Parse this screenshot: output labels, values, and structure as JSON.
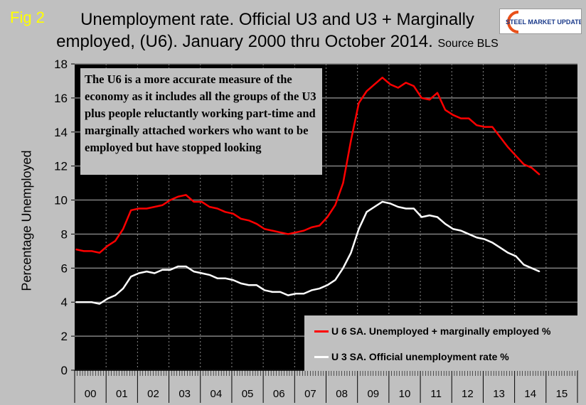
{
  "header": {
    "fig_label": "Fig 2",
    "title": "Unemployment rate. Official U3 and U3 + Marginally employed, (U6). January 2000 thru October 2014.",
    "source": "Source BLS",
    "logo_text": "STEEL MARKET UPDATE"
  },
  "colors": {
    "background": "#c0c0c0",
    "plot_bg": "#000000",
    "u6": "#ff0000",
    "u3": "#ffffff",
    "fig_label": "#ffff00"
  },
  "annotation": "The U6 is a more accurate measure of the economy as it includes all the groups of the U3 plus people reluctantly working part-time and marginally attached workers who want to be employed but have stopped looking",
  "chart_data": {
    "type": "line",
    "title": "Unemployment rate. Official U3 and U3 + Marginally employed, (U6). January 2000 thru October 2014.",
    "xlabel": "",
    "ylabel": "Percentage Unemployed",
    "ylim": [
      0,
      18
    ],
    "yticks": [
      0,
      2,
      4,
      6,
      8,
      10,
      12,
      14,
      16,
      18
    ],
    "xticklabels": [
      "00",
      "01",
      "02",
      "03",
      "04",
      "05",
      "06",
      "07",
      "08",
      "09",
      "10",
      "11",
      "12",
      "13",
      "14",
      "15"
    ],
    "grid": "on",
    "legend_position": "bottom-right",
    "x": [
      "2000-01",
      "2000-04",
      "2000-07",
      "2000-10",
      "2001-01",
      "2001-04",
      "2001-07",
      "2001-10",
      "2002-01",
      "2002-04",
      "2002-07",
      "2002-10",
      "2003-01",
      "2003-04",
      "2003-07",
      "2003-10",
      "2004-01",
      "2004-04",
      "2004-07",
      "2004-10",
      "2005-01",
      "2005-04",
      "2005-07",
      "2005-10",
      "2006-01",
      "2006-04",
      "2006-07",
      "2006-10",
      "2007-01",
      "2007-04",
      "2007-07",
      "2007-10",
      "2008-01",
      "2008-04",
      "2008-07",
      "2008-10",
      "2009-01",
      "2009-04",
      "2009-07",
      "2009-10",
      "2010-01",
      "2010-04",
      "2010-07",
      "2010-10",
      "2011-01",
      "2011-04",
      "2011-07",
      "2011-10",
      "2012-01",
      "2012-04",
      "2012-07",
      "2012-10",
      "2013-01",
      "2013-04",
      "2013-07",
      "2013-10",
      "2014-01",
      "2014-04",
      "2014-07",
      "2014-10"
    ],
    "series": [
      {
        "name": "U 6 SA. Unemployed + marginally employed %",
        "color": "#ff0000",
        "values": [
          7.1,
          7.0,
          7.0,
          6.9,
          7.3,
          7.6,
          8.3,
          9.4,
          9.5,
          9.5,
          9.6,
          9.7,
          10.0,
          10.2,
          10.3,
          9.9,
          9.9,
          9.6,
          9.5,
          9.3,
          9.2,
          8.9,
          8.8,
          8.6,
          8.3,
          8.2,
          8.1,
          8.0,
          8.1,
          8.2,
          8.4,
          8.5,
          9.0,
          9.7,
          11.0,
          13.5,
          15.7,
          16.4,
          16.8,
          17.2,
          16.8,
          16.6,
          16.9,
          16.7,
          16.0,
          15.9,
          16.3,
          15.3,
          15.0,
          14.8,
          14.8,
          14.4,
          14.3,
          14.3,
          13.7,
          13.1,
          12.6,
          12.1,
          11.9,
          11.5
        ]
      },
      {
        "name": "U 3 SA. Official unemployment rate %",
        "color": "#ffffff",
        "values": [
          4.0,
          4.0,
          4.0,
          3.9,
          4.2,
          4.4,
          4.8,
          5.5,
          5.7,
          5.8,
          5.7,
          5.9,
          5.9,
          6.1,
          6.1,
          5.8,
          5.7,
          5.6,
          5.4,
          5.4,
          5.3,
          5.1,
          5.0,
          5.0,
          4.7,
          4.6,
          4.6,
          4.4,
          4.5,
          4.5,
          4.7,
          4.8,
          5.0,
          5.3,
          6.0,
          6.9,
          8.3,
          9.3,
          9.6,
          9.9,
          9.8,
          9.6,
          9.5,
          9.5,
          9.0,
          9.1,
          9.0,
          8.6,
          8.3,
          8.2,
          8.0,
          7.8,
          7.7,
          7.5,
          7.2,
          6.9,
          6.7,
          6.2,
          6.0,
          5.8
        ]
      }
    ]
  }
}
